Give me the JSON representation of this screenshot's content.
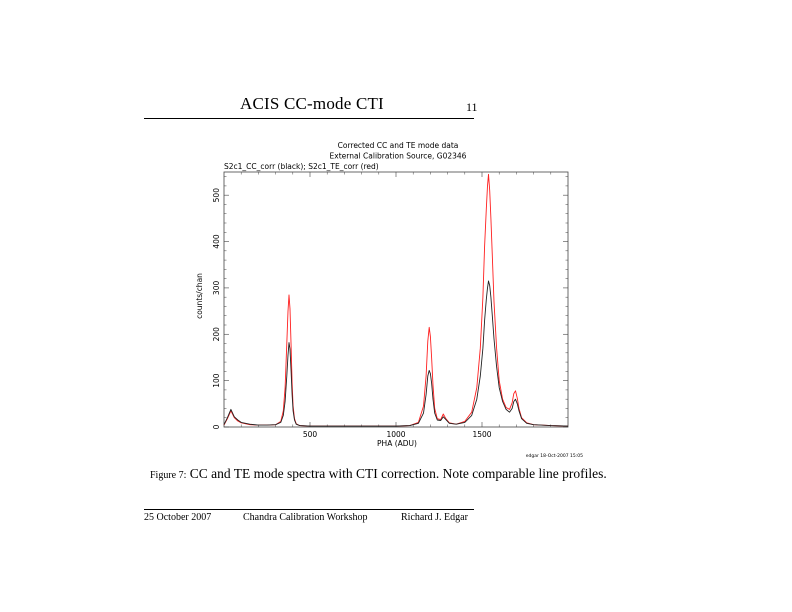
{
  "header": {
    "title": "ACIS CC-mode CTI",
    "page_number": "11"
  },
  "caption": {
    "lead": "Figure 7:",
    "text": " CC and TE mode spectra with CTI correction. Note comparable line profiles."
  },
  "footer": {
    "date": "25 October 2007",
    "workshop": "Chandra Calibration Workshop",
    "author": "Richard J. Edgar"
  },
  "chart_data": {
    "type": "line",
    "title": "Corrected CC and TE mode data",
    "subtitle": "External Calibration Source, G02346",
    "series_label": "S2c1_CC_corr (black); S2c1_TE_corr (red)",
    "xlabel": "PHA (ADU)",
    "ylabel": "counts/chan",
    "xlim": [
      0,
      2000
    ],
    "ylim": [
      0,
      550
    ],
    "x_ticks": [
      500,
      1000,
      1500
    ],
    "y_ticks": [
      0,
      100,
      200,
      300,
      400,
      500
    ],
    "stamp": "edgar 18-Oct-2007 15:05",
    "series": [
      {
        "name": "S2c1_CC_corr",
        "color": "#222222",
        "x": [
          0,
          20,
          40,
          60,
          80,
          100,
          150,
          200,
          250,
          300,
          330,
          345,
          355,
          365,
          372,
          378,
          384,
          390,
          396,
          402,
          410,
          420,
          440,
          500,
          600,
          700,
          800,
          900,
          1000,
          1080,
          1130,
          1160,
          1175,
          1185,
          1193,
          1200,
          1207,
          1215,
          1225,
          1240,
          1260,
          1275,
          1290,
          1310,
          1350,
          1400,
          1440,
          1470,
          1490,
          1505,
          1515,
          1525,
          1532,
          1538,
          1545,
          1552,
          1560,
          1570,
          1585,
          1600,
          1620,
          1640,
          1660,
          1675,
          1685,
          1695,
          1705,
          1715,
          1730,
          1760,
          1800,
          1900,
          2000
        ],
        "y": [
          5,
          20,
          38,
          22,
          15,
          10,
          6,
          4,
          4,
          5,
          10,
          25,
          55,
          110,
          155,
          182,
          168,
          120,
          70,
          35,
          15,
          6,
          3,
          2,
          2,
          2,
          2,
          2,
          2,
          3,
          8,
          30,
          70,
          110,
          122,
          115,
          95,
          60,
          30,
          15,
          14,
          22,
          16,
          8,
          6,
          10,
          25,
          60,
          110,
          170,
          230,
          275,
          300,
          315,
          305,
          280,
          240,
          190,
          130,
          85,
          55,
          38,
          32,
          40,
          55,
          60,
          50,
          35,
          18,
          8,
          5,
          3,
          2
        ]
      },
      {
        "name": "S2c1_TE_corr",
        "color": "#ff2020",
        "x": [
          0,
          20,
          40,
          60,
          80,
          100,
          150,
          200,
          250,
          300,
          330,
          345,
          355,
          365,
          372,
          378,
          384,
          390,
          396,
          402,
          410,
          420,
          440,
          500,
          600,
          700,
          800,
          900,
          1000,
          1080,
          1130,
          1160,
          1175,
          1185,
          1193,
          1200,
          1207,
          1215,
          1225,
          1240,
          1260,
          1275,
          1290,
          1310,
          1350,
          1400,
          1440,
          1470,
          1490,
          1505,
          1515,
          1525,
          1532,
          1538,
          1545,
          1552,
          1560,
          1570,
          1585,
          1600,
          1620,
          1640,
          1660,
          1675,
          1685,
          1695,
          1705,
          1715,
          1730,
          1760,
          1800,
          1900,
          2000
        ],
        "y": [
          4,
          18,
          35,
          20,
          13,
          9,
          5,
          4,
          4,
          5,
          12,
          35,
          85,
          180,
          250,
          285,
          255,
          175,
          95,
          45,
          18,
          7,
          3,
          2,
          2,
          2,
          2,
          2,
          2,
          3,
          10,
          45,
          110,
          185,
          215,
          195,
          150,
          90,
          40,
          18,
          16,
          28,
          18,
          9,
          6,
          12,
          32,
          85,
          170,
          280,
          390,
          470,
          520,
          545,
          510,
          450,
          370,
          270,
          170,
          100,
          60,
          42,
          38,
          52,
          72,
          78,
          62,
          40,
          20,
          9,
          5,
          3,
          2
        ]
      }
    ]
  }
}
